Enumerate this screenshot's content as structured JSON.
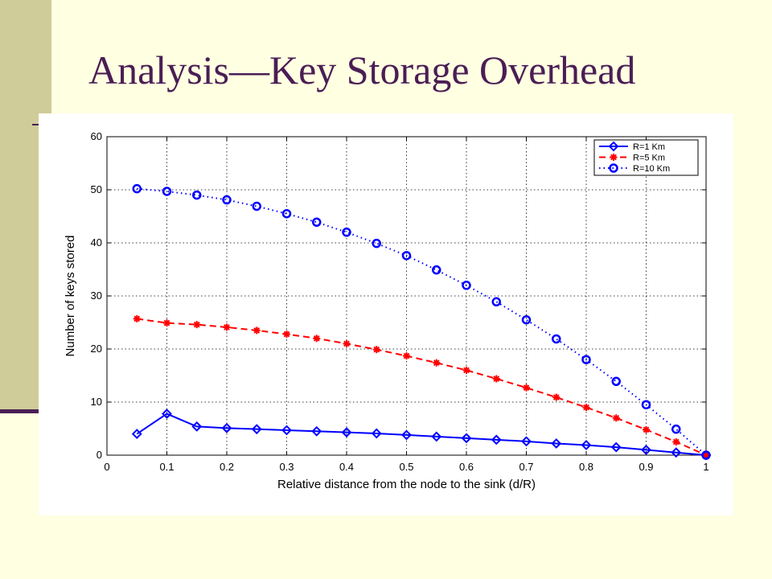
{
  "slide": {
    "title": "Analysis—Key Storage Overhead",
    "colors": {
      "background": "#FFFFE1",
      "band": "#CFCC99",
      "accent": "#4A1E55"
    }
  },
  "chart_data": {
    "type": "line",
    "xlabel": "Relative distance from the node to the sink (d/R)",
    "ylabel": "Number of keys stored",
    "xlim": [
      0,
      1
    ],
    "ylim": [
      0,
      60
    ],
    "xticks": [
      0,
      0.1,
      0.2,
      0.3,
      0.4,
      0.5,
      0.6,
      0.7,
      0.8,
      0.9,
      1
    ],
    "yticks": [
      0,
      10,
      20,
      30,
      40,
      50,
      60
    ],
    "xtick_labels": [
      "0",
      "0.1",
      "0.2",
      "0.3",
      "0.4",
      "0.5",
      "0.6",
      "0.7",
      "0.8",
      "0.9",
      "1"
    ],
    "ytick_labels": [
      "0",
      "10",
      "20",
      "30",
      "40",
      "50",
      "60"
    ],
    "grid": true,
    "legend_position": "top-right",
    "x": [
      0.05,
      0.1,
      0.15,
      0.2,
      0.25,
      0.3,
      0.35,
      0.4,
      0.45,
      0.5,
      0.55,
      0.6,
      0.65,
      0.7,
      0.75,
      0.8,
      0.85,
      0.9,
      0.95,
      1.0
    ],
    "series": [
      {
        "name": "R=1 Km",
        "color": "#0000FF",
        "line_style": "solid",
        "marker": "diamond",
        "values": [
          4.0,
          7.8,
          5.4,
          5.1,
          4.9,
          4.7,
          4.5,
          4.3,
          4.1,
          3.8,
          3.5,
          3.2,
          2.9,
          2.6,
          2.2,
          1.9,
          1.5,
          1.0,
          0.5,
          0.0
        ]
      },
      {
        "name": "R=5 Km",
        "color": "#FF0000",
        "line_style": "dashed",
        "marker": "star",
        "values": [
          25.7,
          24.9,
          24.6,
          24.1,
          23.5,
          22.8,
          22.0,
          21.0,
          19.9,
          18.7,
          17.4,
          16.0,
          14.4,
          12.7,
          10.9,
          9.0,
          7.0,
          4.8,
          2.5,
          0.0
        ]
      },
      {
        "name": "R=10 Km",
        "color": "#0000FF",
        "line_style": "dotted",
        "marker": "circle",
        "values": [
          50.2,
          49.7,
          49.0,
          48.1,
          46.9,
          45.5,
          43.9,
          42.0,
          39.9,
          37.6,
          34.9,
          32.0,
          28.9,
          25.5,
          21.9,
          18.0,
          13.9,
          9.5,
          4.9,
          0.0
        ]
      }
    ]
  }
}
